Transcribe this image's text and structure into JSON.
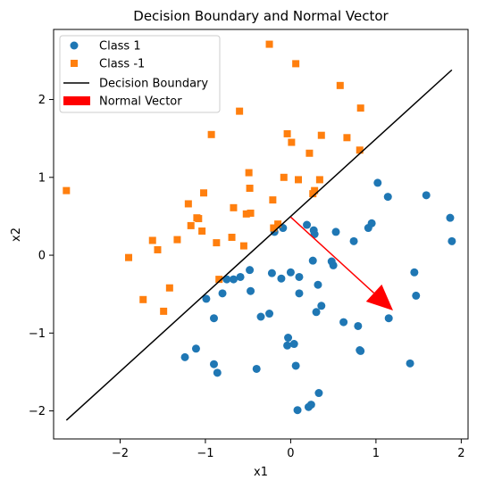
{
  "chart_data": {
    "type": "scatter",
    "title": "Decision Boundary and Normal Vector",
    "xlabel": "x1",
    "ylabel": "x2",
    "xlim": [
      -2.78,
      2.08
    ],
    "ylim": [
      -2.36,
      2.9
    ],
    "xticks": [
      -2,
      -1,
      0,
      1,
      2
    ],
    "yticks": [
      -2,
      -1,
      0,
      1,
      2
    ],
    "grid": false,
    "legend_position": "top-left",
    "legend": [
      "Class 1",
      "Class -1",
      "Decision Boundary",
      "Normal Vector"
    ],
    "series": [
      {
        "name": "Class 1",
        "marker": "circle",
        "color": "#1f77b4",
        "points": [
          [
            0.19,
            0.39
          ],
          [
            0.27,
            0.32
          ],
          [
            0.28,
            0.27
          ],
          [
            0.53,
            0.3
          ],
          [
            0.74,
            0.18
          ],
          [
            0.91,
            0.35
          ],
          [
            0.95,
            0.41
          ],
          [
            1.02,
            0.93
          ],
          [
            1.14,
            0.75
          ],
          [
            1.59,
            0.77
          ],
          [
            1.87,
            0.48
          ],
          [
            1.89,
            0.18
          ],
          [
            -0.19,
            0.3
          ],
          [
            -0.09,
            0.35
          ],
          [
            -0.48,
            -0.19
          ],
          [
            -0.59,
            -0.28
          ],
          [
            -0.67,
            -0.31
          ],
          [
            -0.75,
            -0.31
          ],
          [
            -0.8,
            -0.49
          ],
          [
            -0.99,
            -0.56
          ],
          [
            -0.9,
            -0.81
          ],
          [
            -0.47,
            -0.46
          ],
          [
            -0.22,
            -0.23
          ],
          [
            -0.11,
            -0.3
          ],
          [
            0.0,
            -0.22
          ],
          [
            0.1,
            -0.28
          ],
          [
            0.1,
            -0.49
          ],
          [
            0.26,
            -0.07
          ],
          [
            0.32,
            -0.38
          ],
          [
            0.36,
            -0.65
          ],
          [
            0.3,
            -0.73
          ],
          [
            0.48,
            -0.08
          ],
          [
            0.5,
            -0.13
          ],
          [
            0.62,
            -0.86
          ],
          [
            0.79,
            -0.91
          ],
          [
            0.81,
            -1.22
          ],
          [
            0.82,
            -1.23
          ],
          [
            1.15,
            -0.81
          ],
          [
            1.45,
            -0.22
          ],
          [
            1.47,
            -0.52
          ],
          [
            1.4,
            -1.39
          ],
          [
            -0.35,
            -0.79
          ],
          [
            -0.25,
            -0.75
          ],
          [
            -0.03,
            -1.06
          ],
          [
            -0.04,
            -1.16
          ],
          [
            0.04,
            -1.14
          ],
          [
            0.06,
            -1.42
          ],
          [
            0.33,
            -1.77
          ],
          [
            0.08,
            -1.99
          ],
          [
            0.21,
            -1.95
          ],
          [
            0.24,
            -1.92
          ],
          [
            -0.4,
            -1.46
          ],
          [
            -0.9,
            -1.4
          ],
          [
            -0.86,
            -1.51
          ],
          [
            -1.11,
            -1.2
          ],
          [
            -1.24,
            -1.31
          ]
        ]
      },
      {
        "name": "Class -1",
        "marker": "square",
        "color": "#ff7f0e",
        "points": [
          [
            -0.25,
            2.71
          ],
          [
            0.06,
            2.46
          ],
          [
            0.58,
            2.18
          ],
          [
            0.82,
            1.89
          ],
          [
            -0.6,
            1.85
          ],
          [
            -0.93,
            1.55
          ],
          [
            -0.04,
            1.56
          ],
          [
            0.36,
            1.54
          ],
          [
            0.01,
            1.45
          ],
          [
            0.66,
            1.51
          ],
          [
            0.81,
            1.35
          ],
          [
            0.22,
            1.31
          ],
          [
            -0.49,
            1.06
          ],
          [
            -0.08,
            1.0
          ],
          [
            0.09,
            0.97
          ],
          [
            0.34,
            0.97
          ],
          [
            0.28,
            0.83
          ],
          [
            0.26,
            0.79
          ],
          [
            -0.48,
            0.86
          ],
          [
            -1.02,
            0.8
          ],
          [
            -2.63,
            0.83
          ],
          [
            -1.2,
            0.66
          ],
          [
            -0.21,
            0.71
          ],
          [
            -0.67,
            0.61
          ],
          [
            -0.52,
            0.53
          ],
          [
            -0.47,
            0.54
          ],
          [
            -1.08,
            0.47
          ],
          [
            -1.1,
            0.48
          ],
          [
            -1.17,
            0.38
          ],
          [
            -1.04,
            0.31
          ],
          [
            -0.15,
            0.4
          ],
          [
            -0.2,
            0.35
          ],
          [
            -0.69,
            0.23
          ],
          [
            -0.87,
            0.16
          ],
          [
            -0.55,
            0.12
          ],
          [
            -1.33,
            0.2
          ],
          [
            -1.62,
            0.19
          ],
          [
            -1.56,
            0.07
          ],
          [
            -1.9,
            -0.03
          ],
          [
            -0.84,
            -0.31
          ],
          [
            -1.42,
            -0.42
          ],
          [
            -1.73,
            -0.57
          ],
          [
            -1.49,
            -0.72
          ]
        ]
      }
    ],
    "lines": [
      {
        "name": "Decision Boundary",
        "color": "#000000",
        "points": [
          [
            -2.63,
            -2.12
          ],
          [
            1.89,
            2.38
          ]
        ]
      }
    ],
    "arrows": [
      {
        "name": "Normal Vector",
        "color": "#ff0000",
        "start": [
          0.0,
          0.49
        ],
        "end": [
          1.2,
          -0.71
        ]
      }
    ]
  }
}
